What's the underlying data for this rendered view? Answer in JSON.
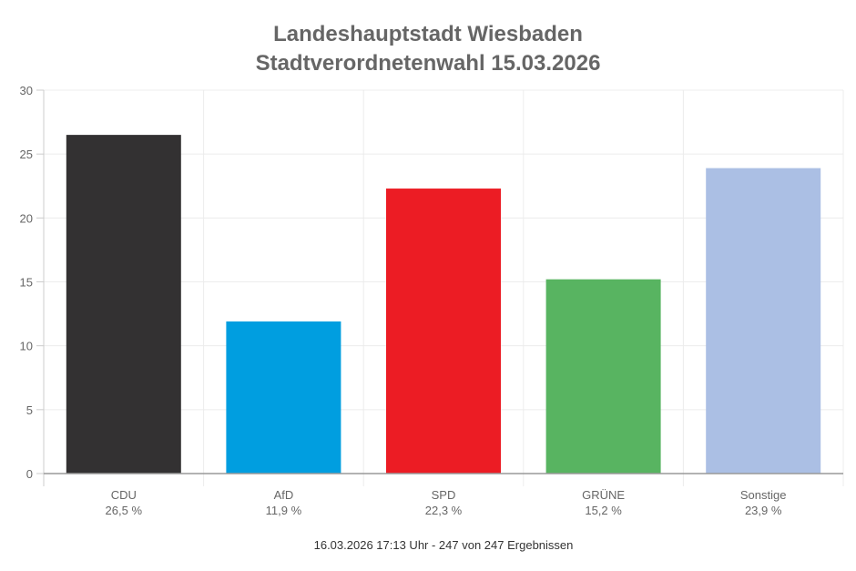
{
  "chart_data": {
    "type": "bar",
    "title": "Landeshauptstadt Wiesbaden",
    "subtitle": "Stadtverordnetenwahl 15.03.2026",
    "categories": [
      "CDU",
      "AfD",
      "SPD",
      "GRÜNE",
      "Sonstige"
    ],
    "values": [
      26.5,
      11.9,
      22.3,
      15.2,
      23.9
    ],
    "value_labels": [
      "26,5 %",
      "11,9 %",
      "22,3 %",
      "15,2 %",
      "23,9 %"
    ],
    "colors": [
      "#333132",
      "#009ee0",
      "#ec1c24",
      "#58b461",
      "#abbfe4"
    ],
    "yticks": [
      0,
      5,
      10,
      15,
      20,
      25,
      30
    ],
    "ylim": [
      0,
      30
    ],
    "xlabel": "",
    "ylabel": "",
    "grid": true,
    "footer": "16.03.2026 17:13 Uhr - 247 von 247 Ergebnissen"
  }
}
